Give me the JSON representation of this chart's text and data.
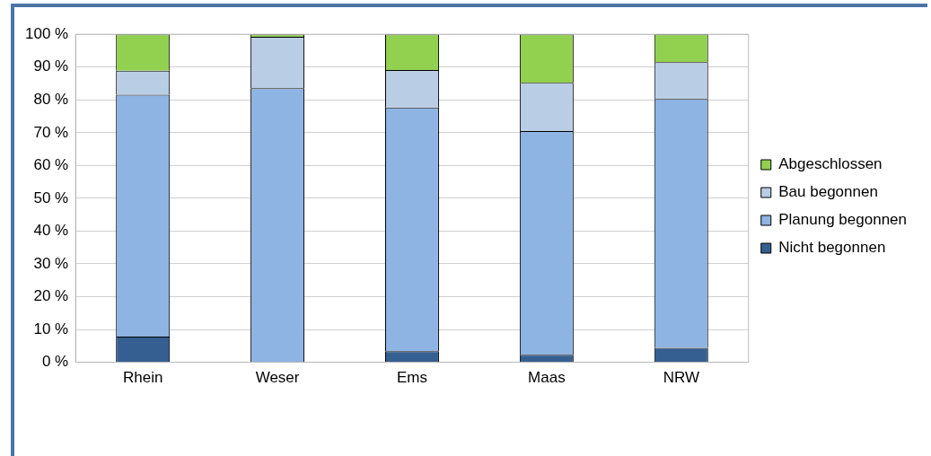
{
  "chart_data": {
    "type": "bar",
    "stacked": true,
    "categories": [
      "Rhein",
      "Weser",
      "Ems",
      "Maas",
      "NRW"
    ],
    "series": [
      {
        "name": "Nicht begonnen",
        "color": "#355f91",
        "values": [
          7.8,
          0,
          3.4,
          2.3,
          4.4
        ]
      },
      {
        "name": "Planung begonnen",
        "color": "#8eb4e3",
        "values": [
          73.8,
          83.6,
          74.3,
          68.2,
          75.9
        ]
      },
      {
        "name": "Bau begonnen",
        "color": "#b9cde5",
        "values": [
          7.3,
          15.6,
          11.4,
          14.7,
          11.2
        ]
      },
      {
        "name": "Abgeschlossen",
        "color": "#92d050",
        "values": [
          11.1,
          0.8,
          10.9,
          14.8,
          8.5
        ]
      }
    ],
    "ylim": [
      0,
      100
    ],
    "yticks": [
      {
        "value": 0,
        "label": "0 %"
      },
      {
        "value": 10,
        "label": "10 %"
      },
      {
        "value": 20,
        "label": "20 %"
      },
      {
        "value": 30,
        "label": "30 %"
      },
      {
        "value": 40,
        "label": "40 %"
      },
      {
        "value": 50,
        "label": "50 %"
      },
      {
        "value": 60,
        "label": "60 %"
      },
      {
        "value": 70,
        "label": "70 %"
      },
      {
        "value": 80,
        "label": "80 %"
      },
      {
        "value": 90,
        "label": "90 %"
      },
      {
        "value": 100,
        "label": "100 %"
      }
    ],
    "grid": "y",
    "legend": "right"
  }
}
